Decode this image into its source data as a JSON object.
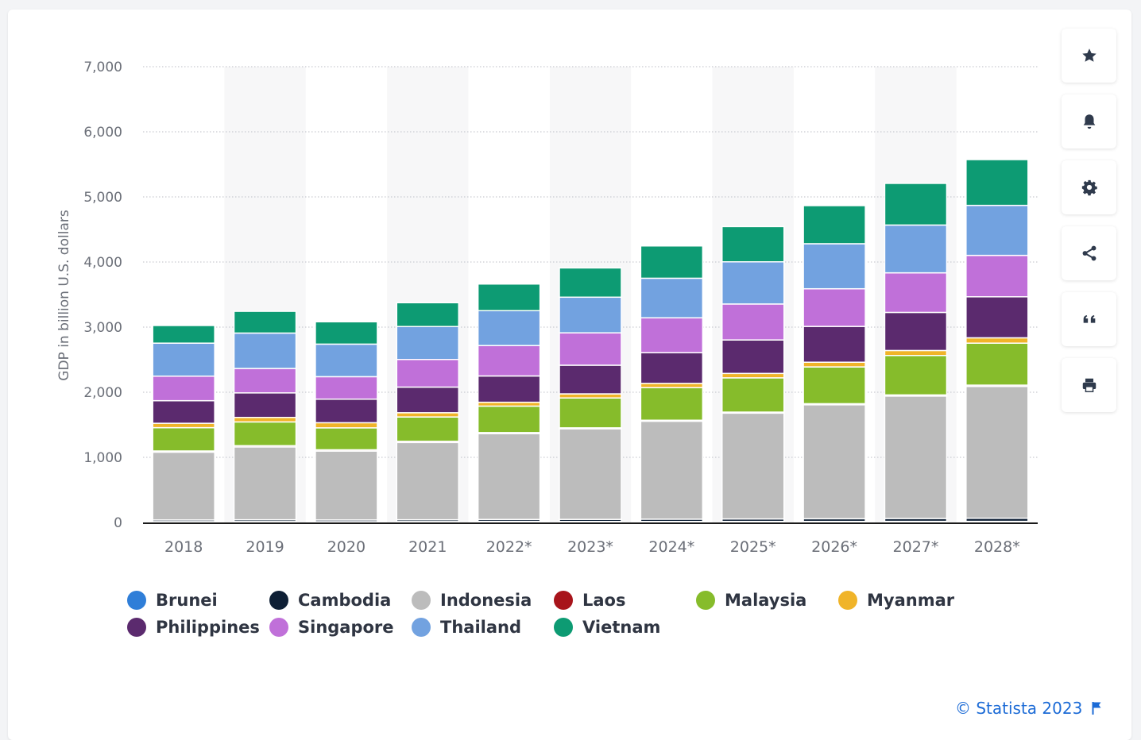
{
  "chart_data": {
    "type": "bar",
    "stacked": true,
    "categories": [
      "2018",
      "2019",
      "2020",
      "2021",
      "2022*",
      "2023*",
      "2024*",
      "2025*",
      "2026*",
      "2027*",
      "2028*"
    ],
    "ylabel": "GDP in billion U.S. dollars",
    "ylim": [
      0,
      7000
    ],
    "yticks": [
      "0",
      "1,000",
      "2,000",
      "3,000",
      "4,000",
      "5,000",
      "6,000",
      "7,000"
    ],
    "ytick_values": [
      0,
      1000,
      2000,
      3000,
      4000,
      5000,
      6000,
      7000
    ],
    "grid": true,
    "legend_position": "bottom",
    "series": [
      {
        "name": "Brunei",
        "color": "#2f7ed8",
        "values": [
          13,
          14,
          12,
          14,
          17,
          15,
          15,
          16,
          16,
          17,
          17
        ]
      },
      {
        "name": "Cambodia",
        "color": "#0e1f35",
        "values": [
          25,
          27,
          26,
          27,
          29,
          32,
          35,
          38,
          41,
          44,
          48
        ]
      },
      {
        "name": "Indonesia",
        "color": "#bcbcbc",
        "values": [
          1042,
          1119,
          1059,
          1187,
          1319,
          1392,
          1505,
          1625,
          1750,
          1880,
          2025
        ]
      },
      {
        "name": "Laos",
        "color": "#a8141b",
        "values": [
          18,
          19,
          19,
          19,
          15,
          14,
          15,
          16,
          17,
          18,
          19
        ]
      },
      {
        "name": "Malaysia",
        "color": "#86bc2b",
        "values": [
          358,
          365,
          337,
          373,
          407,
          459,
          501,
          526,
          565,
          605,
          645
        ]
      },
      {
        "name": "Myanmar",
        "color": "#f0b429",
        "values": [
          67,
          69,
          79,
          65,
          59,
          63,
          65,
          68,
          72,
          77,
          82
        ]
      },
      {
        "name": "Philippines",
        "color": "#5b2a6e",
        "values": [
          347,
          377,
          362,
          394,
          404,
          440,
          471,
          514,
          550,
          585,
          630
        ]
      },
      {
        "name": "Singapore",
        "color": "#c070d9",
        "values": [
          377,
          375,
          345,
          424,
          467,
          497,
          536,
          552,
          578,
          608,
          636
        ]
      },
      {
        "name": "Thailand",
        "color": "#72a2e0",
        "values": [
          507,
          544,
          500,
          506,
          536,
          548,
          608,
          648,
          692,
          734,
          768
        ]
      },
      {
        "name": "Vietnam",
        "color": "#0d9b73",
        "values": [
          271,
          334,
          343,
          366,
          409,
          449,
          496,
          541,
          585,
          640,
          703
        ]
      }
    ]
  },
  "toolbar": {
    "buttons": [
      {
        "name": "favorite-button",
        "icon": "star-icon"
      },
      {
        "name": "notification-button",
        "icon": "bell-icon"
      },
      {
        "name": "settings-button",
        "icon": "gear-icon"
      },
      {
        "name": "share-button",
        "icon": "share-icon"
      },
      {
        "name": "cite-button",
        "icon": "quote-icon"
      },
      {
        "name": "print-button",
        "icon": "printer-icon"
      }
    ],
    "icon_color": "#2f3a4c"
  },
  "credit": {
    "text": "© Statista 2023",
    "color": "#1c6bd6"
  }
}
